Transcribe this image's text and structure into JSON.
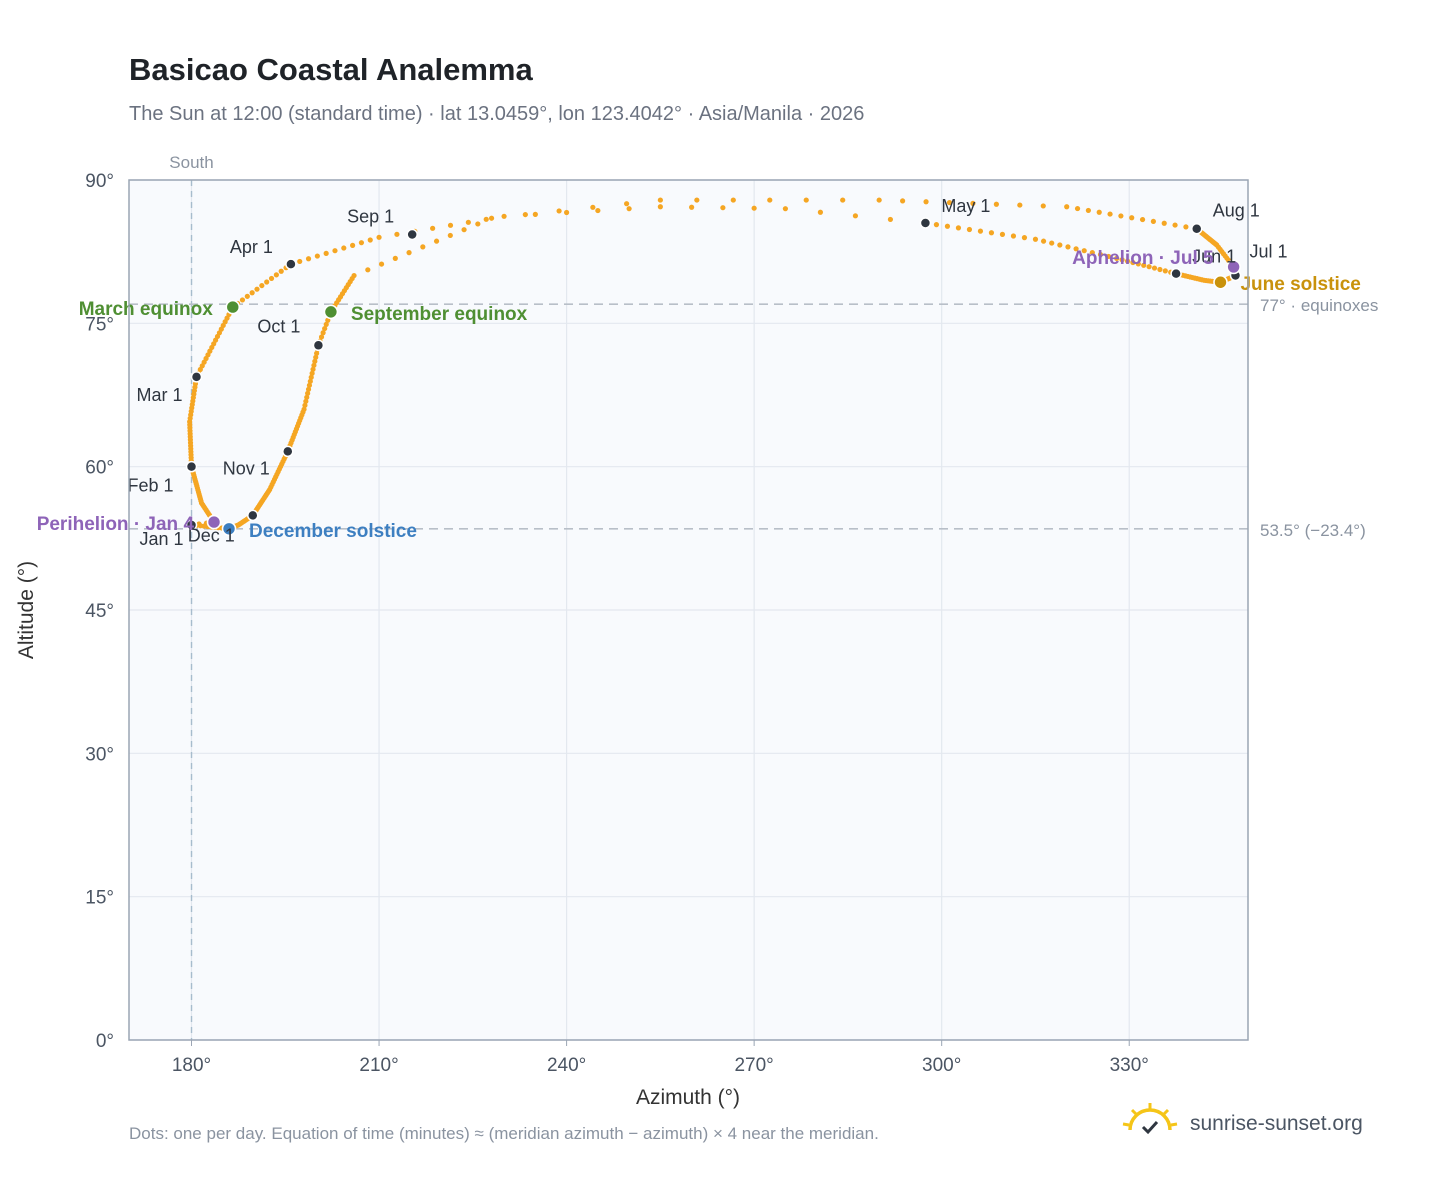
{
  "header": {
    "title": "Basicao Coastal Analemma",
    "subtitle": "The Sun at 12:00 (standard time) · lat 13.0459°, lon 123.4042° · Asia/Manila · 2026"
  },
  "footer": {
    "note": "Dots: one per day. Equation of time (minutes) ≈ (meridian azimuth − azimuth) × 4 near the meridian.",
    "brand": "sunrise-sunset.org"
  },
  "colors": {
    "curve": "#f5a623",
    "month_marker": "#2f3640",
    "equinox": "#4f8f33",
    "december_solstice": "#3d7fc1",
    "june_solstice": "#c9920c",
    "apsis": "#8e64b8",
    "plot_bg": "#f8fafd",
    "grid": "#e3e8ef",
    "reference_line": "#b8bfc8",
    "south_line": "#a7bccd"
  },
  "chart_data": {
    "type": "scatter",
    "title": "Basicao Coastal Analemma",
    "xlabel": "Azimuth (°)",
    "ylabel": "Altitude (°)",
    "xlim": [
      170,
      349
    ],
    "ylim": [
      0,
      90
    ],
    "x_ticks": [
      180,
      210,
      240,
      270,
      300,
      330
    ],
    "x_tick_labels": [
      "180°",
      "210°",
      "240°",
      "270°",
      "300°",
      "330°"
    ],
    "y_ticks": [
      0,
      15,
      30,
      45,
      60,
      75,
      90
    ],
    "y_tick_labels": [
      "0°",
      "15°",
      "30°",
      "45°",
      "60°",
      "75°",
      "90°"
    ],
    "grid": true,
    "south_line": {
      "azimuth": 180,
      "label": "South"
    },
    "reference_lines": [
      {
        "altitude": 77,
        "label": "77° · equinoxes"
      },
      {
        "altitude": 53.5,
        "label": "53.5° (−23.4°)"
      }
    ],
    "path_anchors": [
      {
        "day": 1,
        "az": 180.0,
        "alt": 53.9
      },
      {
        "day": 4,
        "az": 183.6,
        "alt": 54.2
      },
      {
        "day": 15,
        "az": 181.6,
        "alt": 56.2
      },
      {
        "day": 32,
        "az": 180.0,
        "alt": 60.0
      },
      {
        "day": 47,
        "az": 179.7,
        "alt": 64.7
      },
      {
        "day": 60,
        "az": 180.8,
        "alt": 69.4
      },
      {
        "day": 79,
        "az": 186.6,
        "alt": 76.7
      },
      {
        "day": 91,
        "az": 195.9,
        "alt": 81.2
      },
      {
        "day": 101,
        "az": 210.0,
        "alt": 84.0
      },
      {
        "day": 108,
        "az": 230.0,
        "alt": 86.2
      },
      {
        "day": 113,
        "az": 255.0,
        "alt": 87.2
      },
      {
        "day": 117,
        "az": 275.0,
        "alt": 87.0
      },
      {
        "day": 121,
        "az": 297.4,
        "alt": 85.5
      },
      {
        "day": 131,
        "az": 315.0,
        "alt": 83.8
      },
      {
        "day": 141,
        "az": 328.0,
        "alt": 81.8
      },
      {
        "day": 152,
        "az": 337.5,
        "alt": 80.2
      },
      {
        "day": 164,
        "az": 342.0,
        "alt": 79.5
      },
      {
        "day": 172,
        "az": 344.6,
        "alt": 79.3
      },
      {
        "day": 182,
        "az": 347.0,
        "alt": 80.0
      },
      {
        "day": 186,
        "az": 346.7,
        "alt": 80.9
      },
      {
        "day": 196,
        "az": 344.0,
        "alt": 83.2
      },
      {
        "day": 213,
        "az": 340.8,
        "alt": 84.9
      },
      {
        "day": 225,
        "az": 320.0,
        "alt": 87.2
      },
      {
        "day": 233,
        "az": 290.0,
        "alt": 87.9
      },
      {
        "day": 239,
        "az": 255.0,
        "alt": 87.9
      },
      {
        "day": 244,
        "az": 228.0,
        "alt": 86.0
      },
      {
        "day": 254,
        "az": 206.0,
        "alt": 80.0
      },
      {
        "day": 266,
        "az": 202.3,
        "alt": 76.2
      },
      {
        "day": 274,
        "az": 200.3,
        "alt": 72.7
      },
      {
        "day": 290,
        "az": 198.0,
        "alt": 66.0
      },
      {
        "day": 305,
        "az": 195.4,
        "alt": 61.6
      },
      {
        "day": 320,
        "az": 192.5,
        "alt": 57.6
      },
      {
        "day": 335,
        "az": 189.8,
        "alt": 54.9
      },
      {
        "day": 345,
        "az": 187.5,
        "alt": 53.9
      },
      {
        "day": 355,
        "az": 186.0,
        "alt": 53.5
      },
      {
        "day": 365,
        "az": 180.3,
        "alt": 53.9
      }
    ],
    "month_markers": [
      {
        "label": "Jan 1",
        "az": 180.0,
        "alt": 53.9
      },
      {
        "label": "Feb 1",
        "az": 180.0,
        "alt": 60.0
      },
      {
        "label": "Mar 1",
        "az": 180.8,
        "alt": 69.4
      },
      {
        "label": "Apr 1",
        "az": 195.9,
        "alt": 81.2
      },
      {
        "label": "May 1",
        "az": 297.4,
        "alt": 85.5
      },
      {
        "label": "Jun 1",
        "az": 337.5,
        "alt": 80.2
      },
      {
        "label": "Jul 1",
        "az": 347.0,
        "alt": 80.0
      },
      {
        "label": "Aug 1",
        "az": 340.8,
        "alt": 84.9
      },
      {
        "label": "Sep 1",
        "az": 215.3,
        "alt": 84.3
      },
      {
        "label": "Oct 1",
        "az": 200.3,
        "alt": 72.7
      },
      {
        "label": "Nov 1",
        "az": 195.4,
        "alt": 61.6
      },
      {
        "label": "Dec 1",
        "az": 189.8,
        "alt": 54.9
      }
    ],
    "special_points": [
      {
        "label": "March equinox",
        "az": 186.6,
        "alt": 76.7,
        "kind": "equinox"
      },
      {
        "label": "September equinox",
        "az": 202.3,
        "alt": 76.2,
        "kind": "equinox"
      },
      {
        "label": "December solstice",
        "az": 186.0,
        "alt": 53.5,
        "kind": "december_solstice"
      },
      {
        "label": "June solstice",
        "az": 344.6,
        "alt": 79.3,
        "kind": "june_solstice"
      },
      {
        "label": "Perihelion · Jan 4",
        "az": 183.6,
        "alt": 54.2,
        "kind": "apsis"
      },
      {
        "label": "Aphelion · Jul 5",
        "az": 346.7,
        "alt": 80.9,
        "kind": "apsis"
      }
    ]
  }
}
